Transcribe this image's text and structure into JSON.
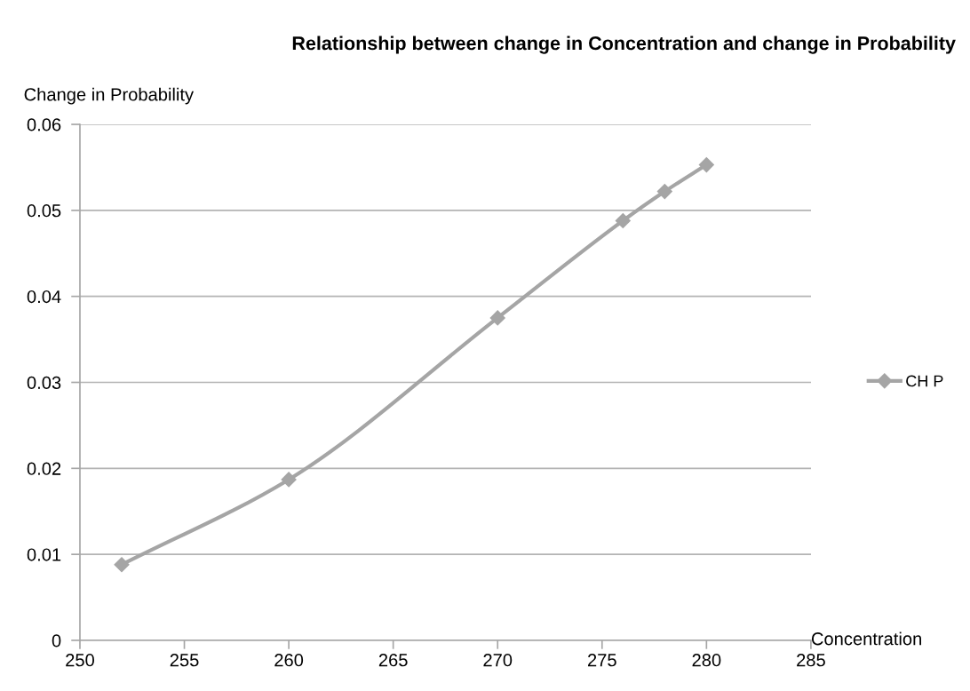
{
  "chart_data": {
    "type": "line",
    "title": "Relationship between change in Concentration and change in Probability",
    "xlabel": "Concentration",
    "ylabel": "Change in Probability",
    "x": [
      252,
      260,
      270,
      276,
      278,
      280
    ],
    "series": [
      {
        "name": "CH P",
        "color": "#a5a5a5",
        "values": [
          0.0088,
          0.0187,
          0.0375,
          0.0488,
          0.0522,
          0.0553
        ]
      }
    ],
    "xlim": [
      250,
      285
    ],
    "xticks": [
      250,
      255,
      260,
      265,
      270,
      275,
      280,
      285
    ],
    "ylim": [
      0,
      0.06
    ],
    "yticks": [
      0,
      0.01,
      0.02,
      0.03,
      0.04,
      0.05,
      0.06
    ],
    "grid": "y",
    "legend": "right",
    "marker": "diamond",
    "line_style": "solid"
  }
}
